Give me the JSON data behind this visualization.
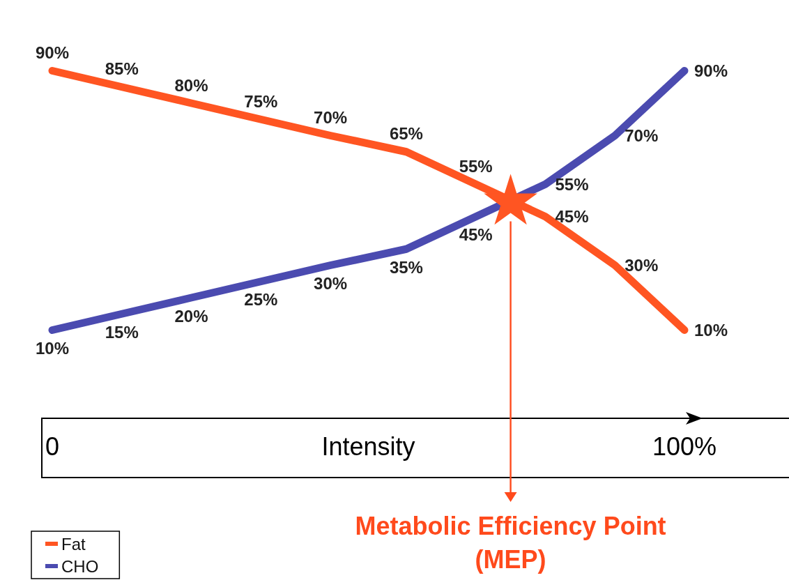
{
  "chart_data": {
    "type": "line",
    "xlabel": "Intensity",
    "x": [
      0,
      11,
      22,
      33,
      44,
      56,
      67,
      78,
      89,
      100
    ],
    "series": [
      {
        "name": "Fat",
        "color": "#ff5522",
        "values": [
          90,
          85,
          80,
          75,
          70,
          65,
          55,
          45,
          30,
          10
        ],
        "value_labels": [
          "90%",
          "85%",
          "80%",
          "75%",
          "70%",
          "65%",
          "55%",
          "45%",
          "30%",
          "10%"
        ]
      },
      {
        "name": "CHO",
        "color": "#4b4bb0",
        "values": [
          10,
          15,
          20,
          25,
          30,
          35,
          45,
          55,
          70,
          90
        ],
        "value_labels": [
          "10%",
          "15%",
          "20%",
          "25%",
          "30%",
          "35%",
          "45%",
          "55%",
          "70%",
          "90%"
        ]
      }
    ],
    "xlim": [
      0,
      100
    ],
    "xticks": [
      {
        "value": 0,
        "label": "0"
      },
      {
        "value": 100,
        "label": "100%"
      }
    ],
    "tick_labels": "x",
    "legend": "bottom left",
    "grid": false,
    "marker": "none",
    "line_style": "solid",
    "annotations": [
      "Metabolic Efficiency Point (MEP)"
    ]
  }
}
